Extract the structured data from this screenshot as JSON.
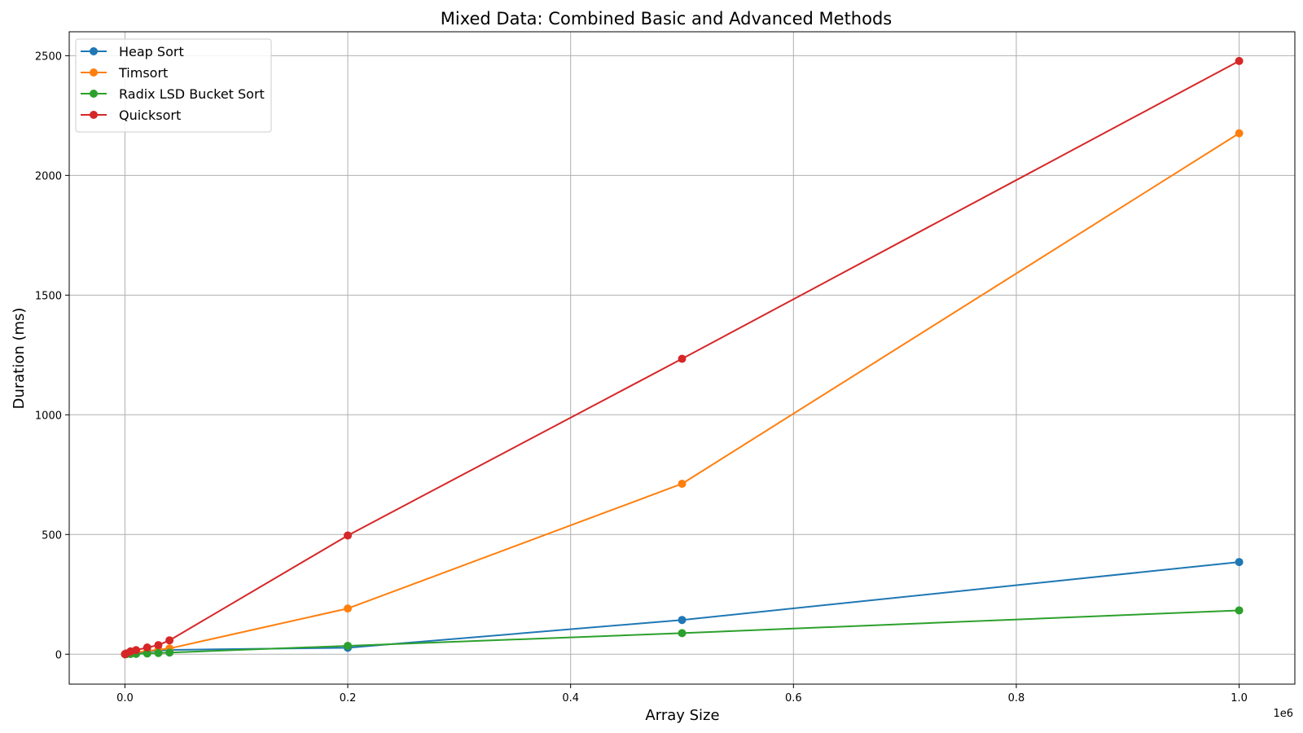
{
  "chart_data": {
    "type": "line",
    "title": "Mixed Data: Combined Basic and Advanced Methods",
    "xlabel": "Array Size",
    "ylabel": "Duration (ms)",
    "x_offset_label": "1e6",
    "xlim": [
      -50000,
      1050000
    ],
    "ylim": [
      -125,
      2600
    ],
    "xticks": [
      0,
      200000,
      400000,
      600000,
      800000,
      1000000
    ],
    "xtick_labels": [
      "0.0",
      "0.2",
      "0.4",
      "0.6",
      "0.8",
      "1.0"
    ],
    "yticks": [
      0,
      500,
      1000,
      1500,
      2000,
      2500
    ],
    "ytick_labels": [
      "0",
      "500",
      "1000",
      "1500",
      "2000",
      "2500"
    ],
    "grid": true,
    "legend_position": "top-left",
    "x": [
      100,
      1000,
      5000,
      10000,
      20000,
      30000,
      40000,
      200000,
      500000,
      1000000
    ],
    "series": [
      {
        "name": "Heap Sort",
        "color": "#1f77b4",
        "values": [
          0.1,
          0.8,
          3,
          6,
          11,
          15,
          18,
          27,
          143,
          385
        ]
      },
      {
        "name": "Timsort",
        "color": "#ff7f0e",
        "values": [
          0.1,
          0.7,
          4,
          8,
          13,
          19,
          24,
          191,
          712,
          2176
        ]
      },
      {
        "name": "Radix LSD Bucket Sort",
        "color": "#2ca02c",
        "values": [
          0.05,
          0.3,
          1,
          1.5,
          3,
          5,
          7,
          35,
          88,
          183
        ]
      },
      {
        "name": "Quicksort",
        "color": "#d62728",
        "values": [
          0.3,
          3,
          12,
          17,
          28,
          38,
          58,
          496,
          1234,
          2478
        ]
      }
    ]
  }
}
